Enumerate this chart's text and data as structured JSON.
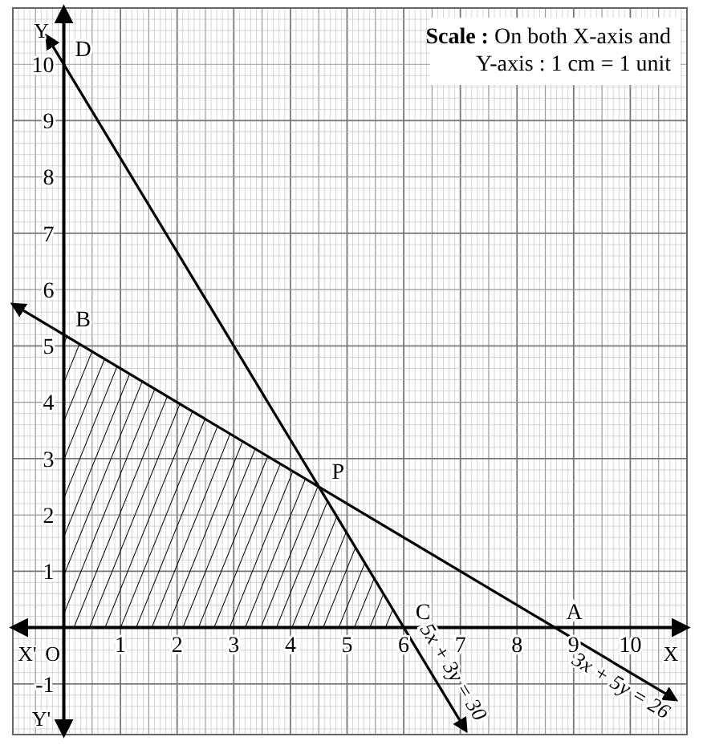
{
  "chart_data": {
    "type": "line",
    "xlim": [
      -0.9,
      11
    ],
    "ylim": [
      -1.9,
      11
    ],
    "xticks": [
      1,
      2,
      3,
      4,
      5,
      6,
      7,
      8,
      9,
      10
    ],
    "yticks": [
      -1,
      1,
      2,
      3,
      4,
      5,
      6,
      7,
      8,
      9,
      10
    ],
    "grid": true,
    "marker": "none",
    "line_style": "solid",
    "series": [
      {
        "name": "5x + 3y = 30",
        "color": "#000000",
        "x": [
          -0.3,
          7.1
        ],
        "values": [
          10.5,
          -1.83
        ]
      },
      {
        "name": "3x + 5y = 26",
        "color": "#000000",
        "x": [
          -0.9,
          10.8
        ],
        "values": [
          5.74,
          -1.28
        ]
      },
      {
        "type": "area",
        "color": "#000000",
        "x": [
          0,
          4.5,
          6
        ],
        "values": [
          5.2,
          2.5,
          0
        ]
      }
    ],
    "annotations": [
      {
        "text": "D",
        "x": 0,
        "y": 10
      },
      {
        "text": "B",
        "x": 0,
        "y": 5.2
      },
      {
        "text": "P",
        "x": 4.5,
        "y": 2.5
      },
      {
        "text": "C",
        "x": 6,
        "y": 0
      },
      {
        "text": "A",
        "x": 8.67,
        "y": 0
      },
      "X'",
      "O",
      "Y'",
      "X",
      "Y",
      "Scale : On both X-axis and Y-axis : 1 cm = 1 unit"
    ]
  }
}
